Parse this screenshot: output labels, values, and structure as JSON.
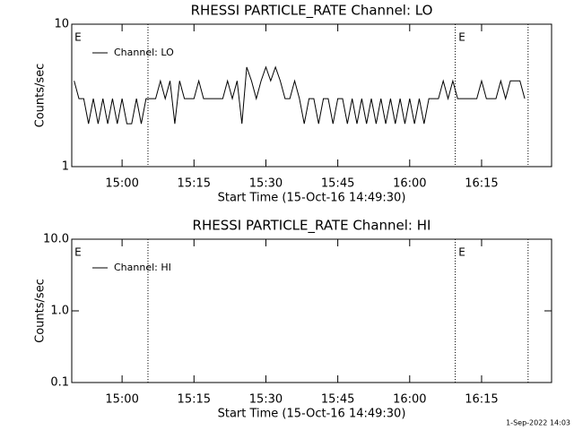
{
  "chart_data": [
    {
      "type": "line",
      "title": "RHESSI PARTICLE_RATE Channel: LO",
      "xlabel": "Start Time (15-Oct-16 14:49:30)",
      "ylabel": "Counts/sec",
      "ylog": true,
      "ylim": [
        1,
        10
      ],
      "yticks": [
        1,
        10
      ],
      "xlim": [
        889.5,
        989.6
      ],
      "xticks": [
        {
          "value": 900,
          "label": "15:00"
        },
        {
          "value": 915,
          "label": "15:15"
        },
        {
          "value": 930,
          "label": "15:30"
        },
        {
          "value": 945,
          "label": "15:45"
        },
        {
          "value": 960,
          "label": "16:00"
        },
        {
          "value": 975,
          "label": "16:15"
        }
      ],
      "legend": "upper left",
      "vlines": [
        905.4,
        969.5,
        984.7
      ],
      "annotations": [
        {
          "text": "E",
          "x": 889.9
        },
        {
          "text": "E",
          "x": 970
        }
      ],
      "x": [
        890,
        891,
        892,
        893,
        894,
        895,
        896,
        897,
        898,
        899,
        900,
        901,
        902,
        903,
        904,
        905,
        906,
        907,
        908,
        909,
        910,
        911,
        912,
        913,
        914,
        915,
        916,
        917,
        918,
        919,
        920,
        921,
        922,
        923,
        924,
        925,
        926,
        927,
        928,
        929,
        930,
        931,
        932,
        933,
        934,
        935,
        936,
        937,
        938,
        939,
        940,
        941,
        942,
        943,
        944,
        945,
        946,
        947,
        948,
        949,
        950,
        951,
        952,
        953,
        954,
        955,
        956,
        957,
        958,
        959,
        960,
        961,
        962,
        963,
        964,
        965,
        966,
        967,
        968,
        969,
        970,
        971,
        972,
        973,
        974,
        975,
        976,
        977,
        978,
        979,
        980,
        981,
        982,
        983,
        984
      ],
      "series": [
        {
          "name": "Channel: LO",
          "color": "#000000",
          "values": [
            4,
            3,
            3,
            2,
            3,
            2,
            3,
            2,
            3,
            2,
            3,
            2,
            2,
            3,
            2,
            3,
            3,
            3,
            4,
            3,
            4,
            2,
            4,
            3,
            3,
            3,
            4,
            3,
            3,
            3,
            3,
            3,
            4,
            3,
            4,
            2,
            5,
            4,
            3,
            4,
            5,
            4,
            5,
            4,
            3,
            3,
            4,
            3,
            2,
            3,
            3,
            2,
            3,
            3,
            2,
            3,
            3,
            2,
            3,
            2,
            3,
            2,
            3,
            2,
            3,
            2,
            3,
            2,
            3,
            2,
            3,
            2,
            3,
            2,
            3,
            3,
            3,
            4,
            3,
            4,
            3,
            3,
            3,
            3,
            3,
            4,
            3,
            3,
            3,
            4,
            3,
            4,
            4,
            4,
            3
          ]
        }
      ]
    },
    {
      "type": "line",
      "title": "RHESSI PARTICLE_RATE Channel: HI",
      "xlabel": "Start Time (15-Oct-16 14:49:30)",
      "ylabel": "Counts/sec",
      "ylog": true,
      "ylim": [
        0.1,
        10
      ],
      "yticks": [
        0.1,
        {
          "value": 1,
          "label": "1.0"
        },
        {
          "value": 10,
          "label": "10.0"
        }
      ],
      "xlim": [
        889.5,
        989.6
      ],
      "xticks": [
        {
          "value": 900,
          "label": "15:00"
        },
        {
          "value": 915,
          "label": "15:15"
        },
        {
          "value": 930,
          "label": "15:30"
        },
        {
          "value": 945,
          "label": "15:45"
        },
        {
          "value": 960,
          "label": "16:00"
        },
        {
          "value": 975,
          "label": "16:15"
        }
      ],
      "legend": "upper left",
      "vlines": [
        905.4,
        969.5,
        984.7
      ],
      "annotations": [
        {
          "text": "E",
          "x": 889.9
        },
        {
          "text": "E",
          "x": 970
        }
      ],
      "x": [],
      "series": [
        {
          "name": "Channel: HI",
          "color": "#000000",
          "values": []
        }
      ]
    }
  ],
  "footer": "1-Sep-2022 14:03"
}
